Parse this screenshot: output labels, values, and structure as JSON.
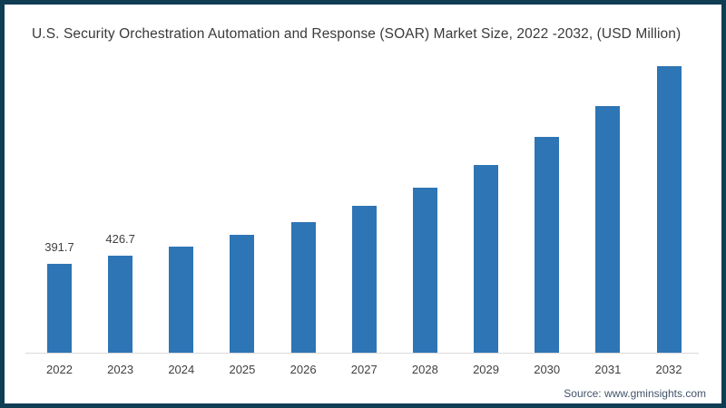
{
  "chart_data": {
    "type": "bar",
    "title": "U.S. Security Orchestration Automation and Response (SOAR) Market Size, 2022 -2032, (USD Million)",
    "categories": [
      "2022",
      "2023",
      "2024",
      "2025",
      "2026",
      "2027",
      "2028",
      "2029",
      "2030",
      "2031",
      "2032"
    ],
    "values": [
      391.7,
      426.7,
      468,
      517,
      575,
      645,
      727,
      827,
      949,
      1085,
      1261
    ],
    "data_labels": [
      "391.7",
      "426.7",
      "",
      "",
      "",
      "",
      "",
      "",
      "",
      "",
      ""
    ],
    "xlabel": "",
    "ylabel": "",
    "ylim": [
      0,
      1320
    ],
    "grid": false,
    "legend": false,
    "bar_color": "#2e75b5",
    "axis_line_color": "#d9d9d9",
    "frame_color": "#0f3d54",
    "title_color": "#3a3a3a",
    "tick_label_color": "#404040",
    "source": "Source: www.gminsights.com"
  }
}
